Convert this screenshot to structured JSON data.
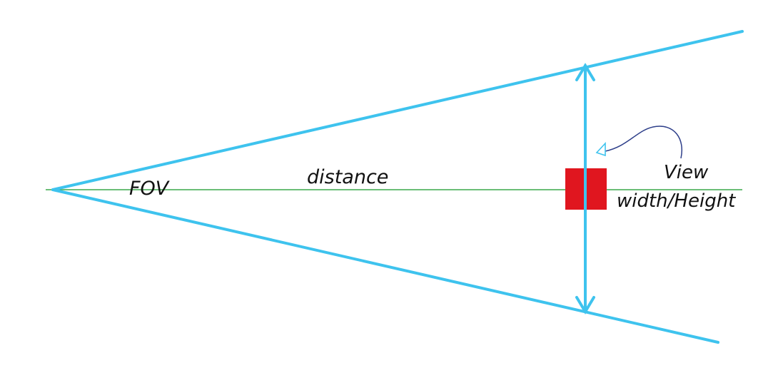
{
  "labels": {
    "fov": "FOV",
    "distance": "distance",
    "view_line1": "View",
    "view_line2": "width/Height"
  },
  "colors": {
    "frustum": "#3ec3ee",
    "axis": "#3aa84a",
    "object": "#e0161f",
    "annotation_arrow": "#2e3f8a",
    "text": "#111111"
  },
  "icons": {
    "measure_arrow": "double-headed-arrow",
    "pointer_arrow": "curved-arrow"
  }
}
